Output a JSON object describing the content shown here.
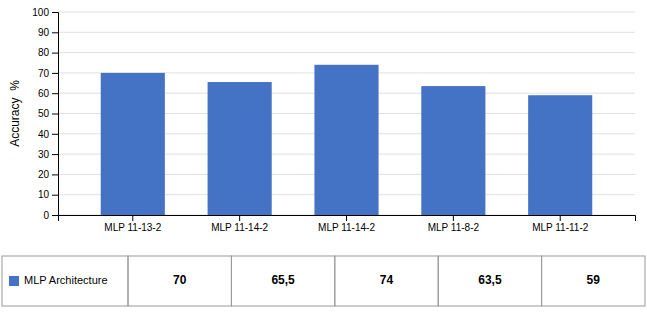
{
  "chart_data": {
    "type": "bar",
    "ylabel": "Accuracy  %",
    "categories": [
      "MLP 11-13-2",
      "MLP 11-14-2",
      "MLP 11-14-2",
      "MLP 11-8-2",
      "MLP 11-11-2"
    ],
    "series": [
      {
        "name": "MLP Architecture",
        "color": "#4472C4",
        "values": [
          70,
          65.5,
          74,
          63.5,
          59
        ],
        "value_labels": [
          "70",
          "65,5",
          "74",
          "63,5",
          "59"
        ]
      }
    ],
    "ylim": [
      0,
      100
    ],
    "yticks": [
      0,
      10,
      20,
      30,
      40,
      50,
      60,
      70,
      80,
      90,
      100
    ],
    "grid": true,
    "legend": "bottom"
  }
}
